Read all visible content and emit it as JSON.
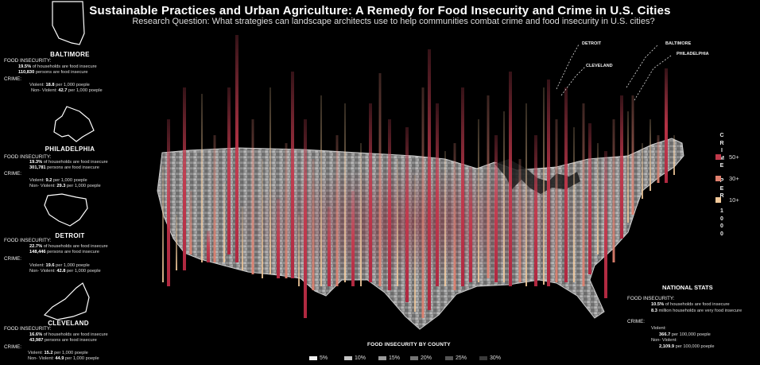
{
  "title": "Sustainable Practices and Urban Agriculture: A Remedy for Food Insecurity and Crime in U.S. Cities",
  "subtitle": "Research Question: What strategies can landscape architects use to help communities combat crime and food insecurity in U.S. cities?",
  "cities": [
    {
      "name": "BALTIMORE",
      "food_label": "FOOD INSECURITY:",
      "food_line1_value": "19.5%",
      "food_line1_text": " of households are food insecure",
      "food_line2_value": "110,830",
      "food_line2_text": " persons are food insecure",
      "crime_label": "CRIME:",
      "violent_prefix": "Violent: ",
      "violent_value": "18.8",
      "violent_text": " per 1,000 poeple",
      "nonviolent_prefix": "Non- Violent: ",
      "nonviolent_value": "42.7",
      "nonviolent_text": " per 1,000 poeple"
    },
    {
      "name": "PHILADELPHIA",
      "food_label": "FOOD INSECURITY:",
      "food_line1_value": "19.3%",
      "food_line1_text": " of households are food insecure",
      "food_line2_value": "301,781",
      "food_line2_text": " persons are food insecure",
      "crime_label": "CRIME:",
      "violent_prefix": "Violent: ",
      "violent_value": "9.2",
      "violent_text": " per 1,000 poeple",
      "nonviolent_prefix": "Non- Violent: ",
      "nonviolent_value": "29.3",
      "nonviolent_text": " per 1,000 poeple"
    },
    {
      "name": "DETROIT",
      "food_label": "FOOD INSECURITY:",
      "food_line1_value": "22.7%",
      "food_line1_text": " of households are food insecure",
      "food_line2_value": "148,446",
      "food_line2_text": " persons are food insecure",
      "crime_label": "CRIME:",
      "violent_prefix": "Violent: ",
      "violent_value": "19.6",
      "violent_text": " per 1,000 poeple",
      "nonviolent_prefix": "Non- Violent: ",
      "nonviolent_value": "42.8",
      "nonviolent_text": " per 1,000 poeple"
    },
    {
      "name": "CLEVELAND",
      "food_label": "FOOD INSECURITY:",
      "food_line1_value": "16.6%",
      "food_line1_text": " of households are food insecure",
      "food_line2_value": "43,987",
      "food_line2_text": " persons are food insecure",
      "crime_label": "CRIME:",
      "violent_prefix": "Violent: ",
      "violent_value": "15.2",
      "violent_text": " per 1,000 poeple",
      "nonviolent_prefix": "Non- Violent: ",
      "nonviolent_value": "44.9",
      "nonviolent_text": " per 1,000 poeple"
    }
  ],
  "callouts": {
    "detroit": "DETROIT",
    "cleveland": "CLEVELAND",
    "baltimore": "BALTIMORE",
    "philadelphia": "PHILADELPHIA"
  },
  "crime_legend": {
    "title_letters": [
      "C",
      "R",
      "I",
      "M",
      "E",
      "",
      "P",
      "E",
      "R",
      "",
      "1",
      "0",
      "0",
      "0"
    ],
    "items": [
      {
        "label": "50+",
        "color": "#c0394a"
      },
      {
        "label": "30+",
        "color": "#e0806e"
      },
      {
        "label": "10+",
        "color": "#f2c99a"
      }
    ]
  },
  "national": {
    "title": "NATIONAL STATS",
    "food_label": "FOOD INSECURITY:",
    "food_line1_value": "10.5%",
    "food_line1_text": " of households are food insecure",
    "food_line2_value": "8.3",
    "food_line2_text": " million households are very food insecure",
    "crime_label": "CRIME:",
    "violent_label": "Violent:",
    "violent_value": "366.7",
    "violent_text": " per 100,000 poeple",
    "nonviolent_label": "Non- Violent:",
    "nonviolent_value": "2,109.9",
    "nonviolent_text": " per 100,000 poeple"
  },
  "food_legend": {
    "title": "FOOD INSECURITY BY COUNTY",
    "items": [
      {
        "label": "5%",
        "color": "#f0f0f0"
      },
      {
        "label": "10%",
        "color": "#c4c4c4"
      },
      {
        "label": "15%",
        "color": "#9a9a9a"
      },
      {
        "label": "20%",
        "color": "#747474"
      },
      {
        "label": "25%",
        "color": "#555555"
      },
      {
        "label": "30%",
        "color": "#3a3a3a"
      }
    ]
  }
}
